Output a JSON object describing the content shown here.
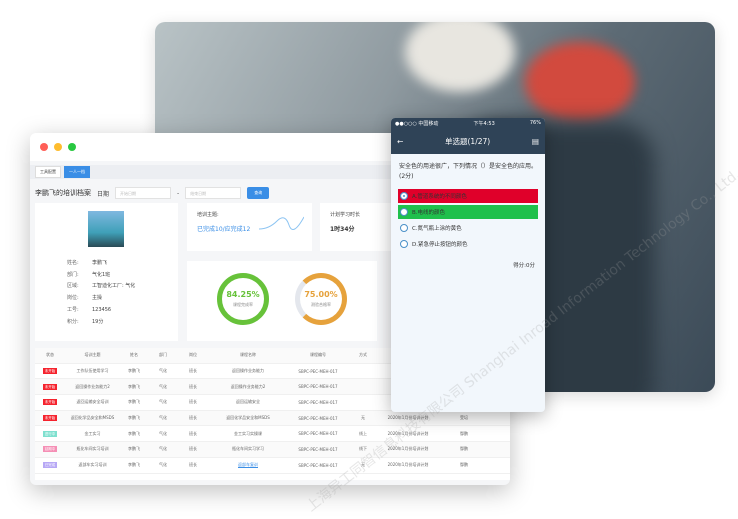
{
  "window": {
    "tabs": [
      "工具配置",
      "一人一档"
    ],
    "title": "李鹏飞的培训档案",
    "date_label": "日期",
    "start_placeholder": "开始日期",
    "end_placeholder": "结束日期",
    "query_label": "查询"
  },
  "profile": {
    "fields": [
      [
        "姓名:",
        "李鹏飞"
      ],
      [
        "部门:",
        "气化1班"
      ],
      [
        "区域:",
        "工智迪化工厂: 气化"
      ],
      [
        "岗位:",
        "主操"
      ],
      [
        "工号:",
        "123456"
      ],
      [
        "积分:",
        "19分"
      ]
    ]
  },
  "training": {
    "label": "培训主题:",
    "value": "已完成10/应完成12"
  },
  "plan": {
    "label": "计划学习时长",
    "value": "1时34分"
  },
  "rings": [
    {
      "value": "84.25%",
      "label": "课程完成率",
      "percent": 84.25,
      "color": "#67c23a"
    },
    {
      "value": "75.00%",
      "label": "测验合格率",
      "percent": 75,
      "color": "#e6a23c"
    }
  ],
  "table": {
    "headers": [
      "状态",
      "培训主题",
      "姓名",
      "部门",
      "岗位",
      "课程名称",
      "课程编号",
      "方式",
      "计划",
      ""
    ],
    "rows": [
      {
        "status": "未开始",
        "color": "#f5222d",
        "cells": [
          "工作队伍使用学习",
          "李鹏飞",
          "气化",
          "班长",
          "返回操作业务能力",
          "SBPC-PEC-MEH-017",
          "",
          "",
          ""
        ]
      },
      {
        "status": "未开始",
        "color": "#f5222d",
        "cells": [
          "返回操作业务能力2",
          "李鹏飞",
          "气化",
          "班长",
          "返回操作业务能力2",
          "SBPC-PEC-MEH-017",
          "",
          "",
          ""
        ]
      },
      {
        "status": "未开始",
        "color": "#f5222d",
        "cells": [
          "返回运输安全培训",
          "李鹏飞",
          "气化",
          "班长",
          "返回运输安全",
          "SBPC-PEC-MEH-017",
          "",
          "",
          ""
        ]
      },
      {
        "status": "未开始",
        "color": "#f5222d",
        "cells": [
          "返回化学品安全和MSDS",
          "李鹏飞",
          "气化",
          "班长",
          "返回化学品安全和MSDS",
          "SBPC-PEC-MEH-017",
          "无",
          "2020年1月份培训计划",
          "受培"
        ]
      },
      {
        "status": "进行中",
        "color": "#7fe0cf",
        "cells": [
          "金工实习",
          "李鹏飞",
          "气化",
          "班长",
          "金工实习实操课",
          "SBPC-PEC-MEH-017",
          "线上",
          "2020年1月份培训计划",
          "鄢鹏"
        ]
      },
      {
        "status": "延期中",
        "color": "#f58fb5",
        "cells": [
          "瓶化车间实习培训",
          "李鹏飞",
          "气化",
          "班长",
          "瓶化车间实习学习",
          "SBPC-PEC-MEH-017",
          "线下",
          "2020年1月份培训计划",
          "鄢鹏"
        ]
      },
      {
        "status": "已完成",
        "color": "#b7a8f5",
        "cells": [
          "返部车实习培训",
          "李鹏飞",
          "气化",
          "班长",
          "返部车复训",
          "SBPC-PEC-MEH-017",
          "无",
          "2020年1月份培训计划",
          "鄢鹏"
        ]
      }
    ]
  },
  "phone": {
    "carrier": "●●○○○ 中国移动",
    "time": "下午4:53",
    "battery": "76%",
    "title": "单选题(1/27)",
    "question": "安全色的用途很广，下列情况（）是安全色的应用。(2分)",
    "options": [
      {
        "text": "A.管道系统的不同颜色",
        "color": "#e0002a",
        "selected": true
      },
      {
        "text": "B.电线的颜色",
        "color": "#1fc04c",
        "selected": false
      },
      {
        "text": "C.氮气瓶上涂的黄色",
        "color": "",
        "selected": false
      },
      {
        "text": "D.紧急停止按钮的颜色",
        "color": "",
        "selected": false
      }
    ],
    "score": "得分:0分"
  },
  "watermark": "上海异工同智信息科技有限公司 Shanghai Inroad Information Technology Co., Ltd."
}
